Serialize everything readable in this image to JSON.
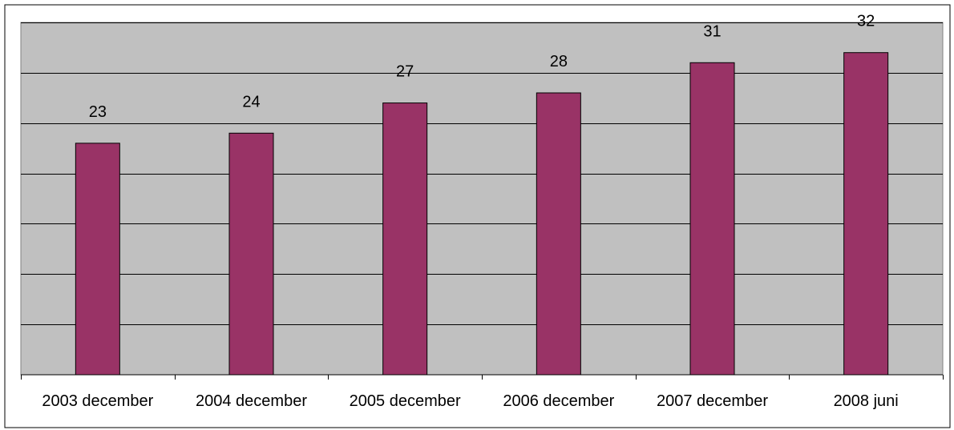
{
  "chart_data": {
    "type": "bar",
    "categories": [
      "2003 december",
      "2004 december",
      "2005 december",
      "2006 december",
      "2007 december",
      "2008 juni"
    ],
    "values": [
      23,
      24,
      27,
      28,
      31,
      32
    ],
    "ylim": [
      0,
      35
    ],
    "grid": true,
    "legend": "none",
    "colors": {
      "bar": "#993366",
      "plot_background": "#c0c0c0",
      "gridline": "#000000",
      "frame": "#000000"
    }
  }
}
